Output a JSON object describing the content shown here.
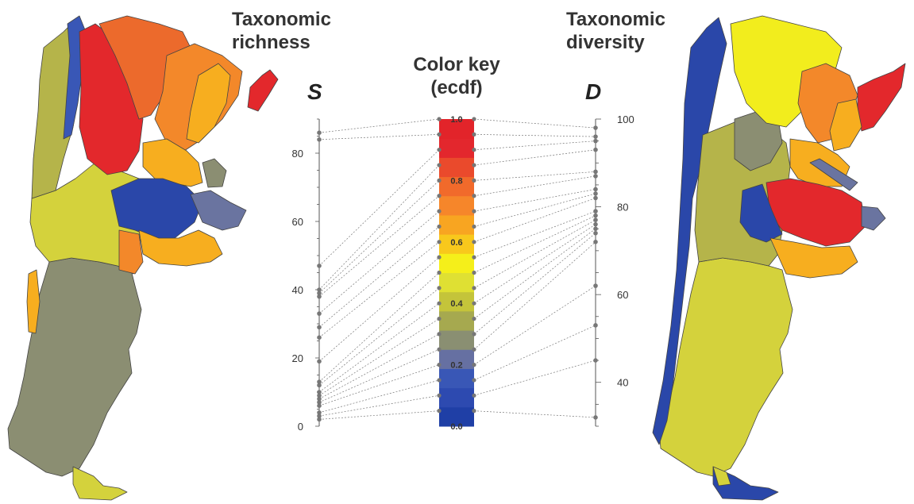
{
  "titles": {
    "left": [
      "Taxonomic",
      "richness"
    ],
    "right": [
      "Taxonomic",
      "diversity"
    ],
    "key": [
      "Color key",
      "(ecdf)"
    ]
  },
  "axes": {
    "s_label": "S",
    "d_label": "D",
    "s_ticks": [
      0,
      20,
      40,
      60,
      80
    ],
    "d_ticks": [
      40,
      60,
      80,
      100
    ]
  },
  "color_key": {
    "tick_labels": [
      "0.0",
      "0.2",
      "0.4",
      "0.6",
      "0.8",
      "1.0"
    ],
    "colors": [
      "#1f3fa6",
      "#2d4ab0",
      "#3957b6",
      "#6670a2",
      "#8a8f72",
      "#a6a94f",
      "#c4c43a",
      "#dfe033",
      "#f5ef1a",
      "#f8c81c",
      "#f8a521",
      "#f6862a",
      "#f16a2b",
      "#ea4a2c",
      "#e3272d",
      "#e2242a"
    ]
  },
  "chart_data": {
    "type": "scatter",
    "s_values": [
      2,
      3,
      4,
      6,
      7,
      8,
      9,
      10,
      12,
      13,
      19,
      26,
      29,
      33,
      38,
      39,
      40,
      47,
      84,
      86
    ],
    "d_values": [
      32,
      45,
      53,
      62,
      72,
      74,
      75,
      76,
      77,
      78,
      79,
      82,
      83,
      84,
      87,
      88,
      93,
      95,
      96,
      98
    ],
    "s_ylim": [
      0,
      90
    ],
    "d_ylim": [
      30,
      100
    ]
  },
  "map_colors": {
    "blue": "#2a47a9",
    "slate": "#6a74a0",
    "olive_gray": "#8b8e72",
    "olive": "#b5b44a",
    "yellow_green": "#d4d23c",
    "yellow": "#f2ed1d",
    "orange_light": "#f7ae1f",
    "orange": "#f3882a",
    "orange_dark": "#ec6a2c",
    "red": "#e3282c"
  }
}
